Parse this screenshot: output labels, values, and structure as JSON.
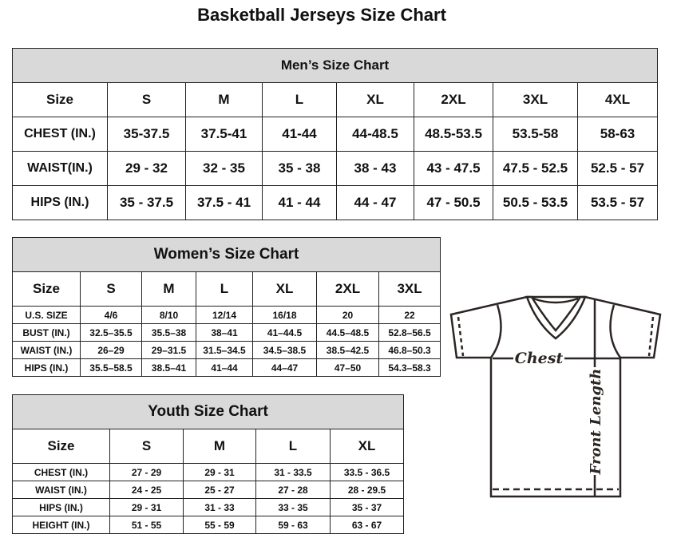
{
  "title": "Basketball Jerseys Size Chart",
  "tables": [
    {
      "id": "men",
      "caption": "Men’s Size Chart",
      "header": [
        "Size",
        "S",
        "M",
        "L",
        "XL",
        "2XL",
        "3XL",
        "4XL"
      ],
      "rows": [
        [
          "CHEST (IN.)",
          "35-37.5",
          "37.5-41",
          "41-44",
          "44-48.5",
          "48.5-53.5",
          "53.5-58",
          "58-63"
        ],
        [
          "WAIST(IN.)",
          "29 - 32",
          "32 - 35",
          "35 - 38",
          "38 - 43",
          "43 - 47.5",
          "47.5 - 52.5",
          "52.5 - 57"
        ],
        [
          "HIPS (IN.)",
          "35 - 37.5",
          "37.5 - 41",
          "41 - 44",
          "44 - 47",
          "47 - 50.5",
          "50.5 - 53.5",
          "53.5 - 57"
        ]
      ]
    },
    {
      "id": "women",
      "caption": "Women’s Size Chart",
      "header": [
        "Size",
        "S",
        "M",
        "L",
        "XL",
        "2XL",
        "3XL"
      ],
      "rows": [
        [
          "U.S. SIZE",
          "4/6",
          "8/10",
          "12/14",
          "16/18",
          "20",
          "22"
        ],
        [
          "BUST (IN.)",
          "32.5–35.5",
          "35.5–38",
          "38–41",
          "41–44.5",
          "44.5–48.5",
          "52.8–56.5"
        ],
        [
          "WAIST (IN.)",
          "26–29",
          "29–31.5",
          "31.5–34.5",
          "34.5–38.5",
          "38.5–42.5",
          "46.8–50.3"
        ],
        [
          "HIPS (IN.)",
          "35.5–58.5",
          "38.5–41",
          "41–44",
          "44–47",
          "47–50",
          "54.3–58.3"
        ]
      ]
    },
    {
      "id": "youth",
      "caption": "Youth Size Chart",
      "header": [
        "Size",
        "S",
        "M",
        "L",
        "XL"
      ],
      "rows": [
        [
          "CHEST (IN.)",
          "27 - 29",
          "29 - 31",
          "31 - 33.5",
          "33.5 - 36.5"
        ],
        [
          "WAIST (IN.)",
          "24 - 25",
          "25 - 27",
          "27 - 28",
          "28 - 29.5"
        ],
        [
          "HIPS (IN.)",
          "29 - 31",
          "31 - 33",
          "33 - 35",
          "35 - 37"
        ],
        [
          "HEIGHT (IN.)",
          "51 - 55",
          "55 - 59",
          "59 - 63",
          "63 - 67"
        ]
      ]
    }
  ],
  "diagram": {
    "chest_label": "Chest",
    "length_label": "Front Length"
  },
  "colors": {
    "caption_bg": "#d9d9d9",
    "line": "#2b2523"
  }
}
